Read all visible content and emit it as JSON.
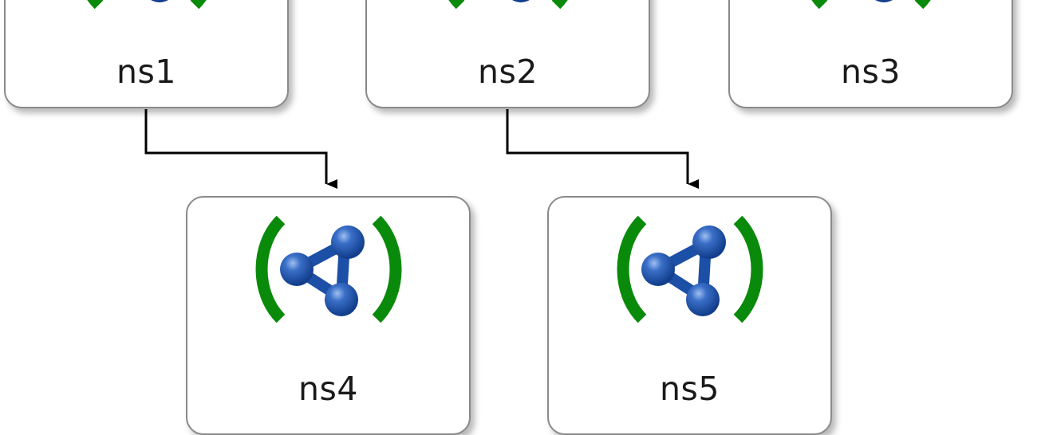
{
  "diagram": {
    "nodes": [
      {
        "id": "ns1",
        "label": "ns1",
        "icon": "namespace-icon"
      },
      {
        "id": "ns2",
        "label": "ns2",
        "icon": "namespace-icon"
      },
      {
        "id": "ns3",
        "label": "ns3",
        "icon": "namespace-icon"
      },
      {
        "id": "ns4",
        "label": "ns4",
        "icon": "namespace-icon"
      },
      {
        "id": "ns5",
        "label": "ns5",
        "icon": "namespace-icon"
      }
    ],
    "edges": [
      {
        "from": "ns1",
        "to": "ns4"
      },
      {
        "from": "ns2",
        "to": "ns5"
      }
    ],
    "colors": {
      "bracket": "#0a8a0a",
      "molecule": "#1c4fa6",
      "molecule_highlight": "#8fb0e8",
      "border": "#8a8a8a",
      "edge": "#000000"
    }
  }
}
